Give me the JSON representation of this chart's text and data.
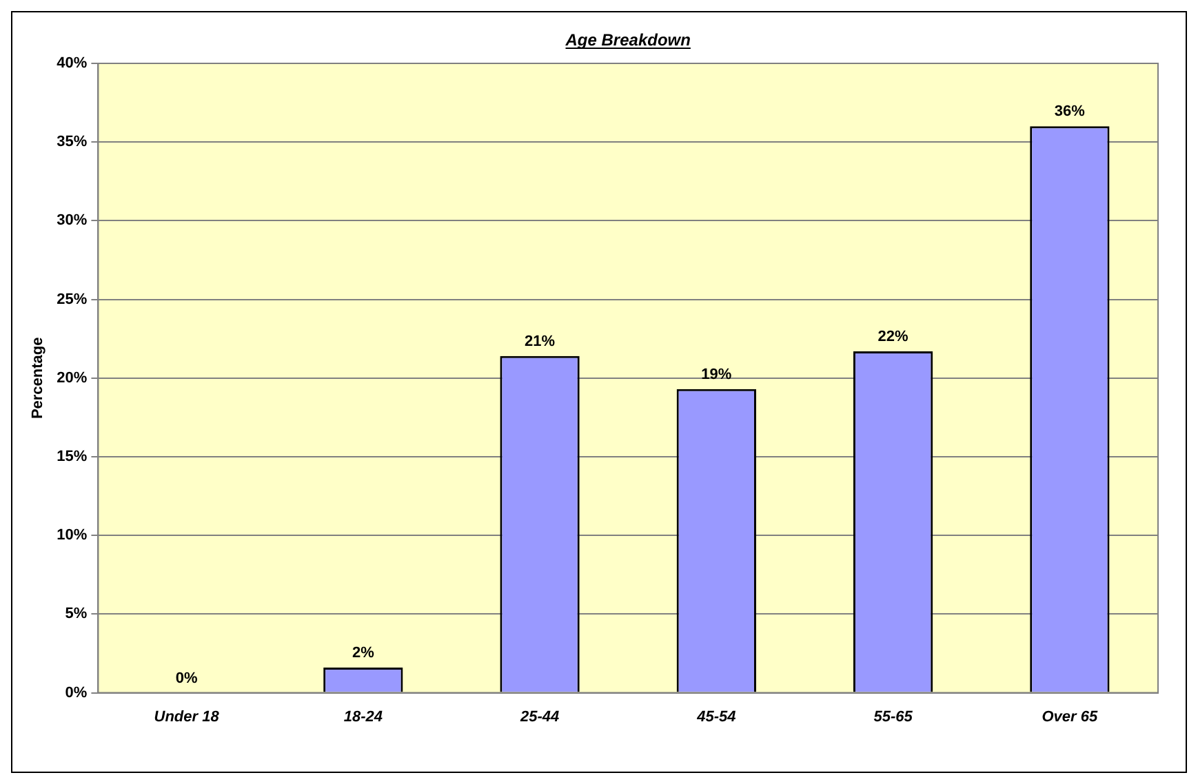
{
  "chart_data": {
    "type": "bar",
    "title": "Age Breakdown",
    "ylabel": "Percentage",
    "categories": [
      "Under 18",
      "18-24",
      "25-44",
      "45-54",
      "55-65",
      "Over 65"
    ],
    "values": [
      0,
      1.6,
      21.4,
      19.3,
      21.7,
      36
    ],
    "value_labels": [
      "0%",
      "2%",
      "21%",
      "19%",
      "22%",
      "36%"
    ],
    "color": "#9999ff",
    "ylim": [
      0,
      40
    ],
    "yticks": [
      {
        "value": 0,
        "label": "0%"
      },
      {
        "value": 5,
        "label": "5%"
      },
      {
        "value": 10,
        "label": "10%"
      },
      {
        "value": 15,
        "label": "15%"
      },
      {
        "value": 20,
        "label": "20%"
      },
      {
        "value": 25,
        "label": "25%"
      },
      {
        "value": 30,
        "label": "30%"
      },
      {
        "value": 35,
        "label": "35%"
      },
      {
        "value": 40,
        "label": "40%"
      }
    ],
    "grid": "y",
    "legend": false
  }
}
